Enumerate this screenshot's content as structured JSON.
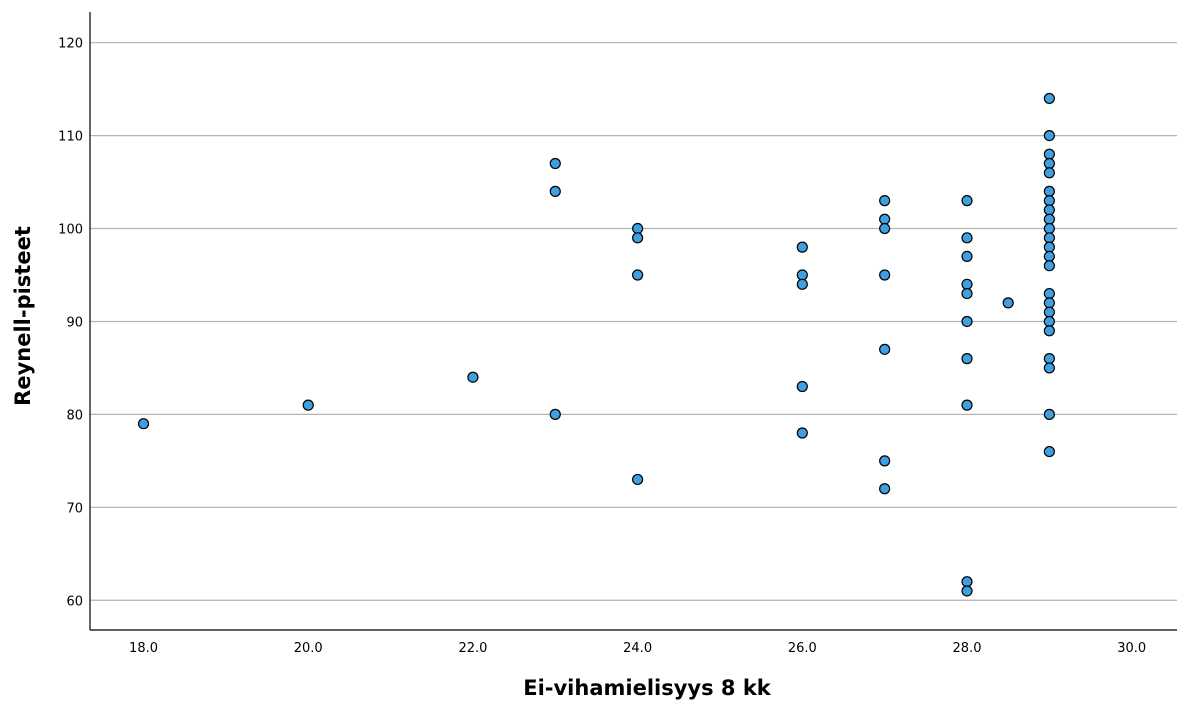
{
  "chart_data": {
    "type": "scatter",
    "xlabel": "Ei-vihamielisyys 8 kk",
    "ylabel": "Reynell-pisteet",
    "xlim": [
      17.35,
      30.55
    ],
    "ylim": [
      56.8,
      123.3
    ],
    "x_ticks": [
      18,
      20,
      22,
      24,
      26,
      28,
      30
    ],
    "x_tick_labels": [
      "18.0",
      "20.0",
      "22.0",
      "24.0",
      "26.0",
      "28.0",
      "30.0"
    ],
    "y_ticks": [
      60,
      70,
      80,
      90,
      100,
      110,
      120
    ],
    "y_tick_labels": [
      "60",
      "70",
      "80",
      "90",
      "100",
      "110",
      "120"
    ],
    "grid": "horizontal",
    "point_color": "#3f9fe0",
    "points": [
      [
        18,
        79
      ],
      [
        20,
        81
      ],
      [
        22,
        84
      ],
      [
        23,
        107
      ],
      [
        23,
        104
      ],
      [
        23,
        80
      ],
      [
        24,
        100
      ],
      [
        24,
        99
      ],
      [
        24,
        95
      ],
      [
        24,
        73
      ],
      [
        26,
        98
      ],
      [
        26,
        95
      ],
      [
        26,
        94
      ],
      [
        26,
        83
      ],
      [
        26,
        78
      ],
      [
        27,
        103
      ],
      [
        27,
        101
      ],
      [
        27,
        100
      ],
      [
        27,
        95
      ],
      [
        27,
        87
      ],
      [
        27,
        75
      ],
      [
        27,
        72
      ],
      [
        28,
        103
      ],
      [
        28,
        99
      ],
      [
        28,
        97
      ],
      [
        28,
        94
      ],
      [
        28,
        93
      ],
      [
        28,
        90
      ],
      [
        28,
        86
      ],
      [
        28,
        81
      ],
      [
        28,
        62
      ],
      [
        28,
        61
      ],
      [
        28.5,
        92
      ],
      [
        29,
        114
      ],
      [
        29,
        110
      ],
      [
        29,
        108
      ],
      [
        29,
        107
      ],
      [
        29,
        106
      ],
      [
        29,
        104
      ],
      [
        29,
        103
      ],
      [
        29,
        102
      ],
      [
        29,
        101
      ],
      [
        29,
        100
      ],
      [
        29,
        99
      ],
      [
        29,
        98
      ],
      [
        29,
        97
      ],
      [
        29,
        96
      ],
      [
        29,
        93
      ],
      [
        29,
        92
      ],
      [
        29,
        91
      ],
      [
        29,
        90
      ],
      [
        29,
        89
      ],
      [
        29,
        86
      ],
      [
        29,
        85
      ],
      [
        29,
        80
      ],
      [
        29,
        76
      ]
    ]
  }
}
